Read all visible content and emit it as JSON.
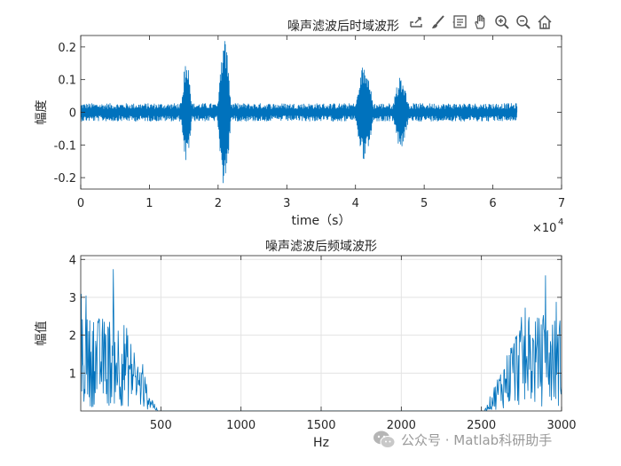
{
  "chart_data": [
    {
      "type": "line",
      "title": "噪声滤波后时域波形",
      "xlabel": "time（s）",
      "ylabel": "幅度",
      "xlim": [
        0,
        70000
      ],
      "ylim": [
        -0.235,
        0.235
      ],
      "x_tick_values": [
        0,
        10000,
        20000,
        30000,
        40000,
        50000,
        60000,
        70000
      ],
      "x_tick_labels": [
        "0",
        "1",
        "2",
        "3",
        "4",
        "5",
        "6",
        "7"
      ],
      "x_exponent_label": "×10",
      "x_exponent_power": "4",
      "y_tick_values": [
        -0.2,
        -0.1,
        0,
        0.1,
        0.2
      ],
      "y_tick_labels": [
        "-0.2",
        "-0.1",
        "0",
        "0.1",
        "0.2"
      ],
      "grid": false,
      "series": [
        {
          "color": "#0072BD",
          "x_range": [
            0,
            63500
          ],
          "noise_envelope": 0.028,
          "bursts": [
            {
              "x_start": 14500,
              "x_end": 16300,
              "peak": 0.16
            },
            {
              "x_start": 19800,
              "x_end": 22000,
              "peak": 0.235
            },
            {
              "x_start": 39800,
              "x_end": 42800,
              "peak": 0.15
            },
            {
              "x_start": 45200,
              "x_end": 48000,
              "peak": 0.11
            }
          ]
        }
      ]
    },
    {
      "type": "line",
      "title": "噪声滤波后频域波形",
      "xlabel": "Hz",
      "ylabel": "幅值",
      "xlim": [
        0,
        3000
      ],
      "ylim": [
        0,
        4.1
      ],
      "x_tick_values": [
        500,
        1000,
        1500,
        2000,
        2500,
        3000
      ],
      "x_tick_labels": [
        "500",
        "1000",
        "1500",
        "2000",
        "2500",
        "3000"
      ],
      "y_tick_values": [
        1,
        2,
        3,
        4
      ],
      "y_tick_labels": [
        "1",
        "2",
        "3",
        "4"
      ],
      "grid": true,
      "series": [
        {
          "color": "#0072BD",
          "low_band": {
            "x_start": 0,
            "x_end": 480,
            "mean": 1.5,
            "peak": 4.1
          },
          "high_band": {
            "x_start": 2520,
            "x_end": 3000,
            "mean": 1.5,
            "peak": 4.1
          },
          "mid_level": 0.0
        }
      ]
    }
  ],
  "toolbar": {
    "icons": [
      "export-icon",
      "brush-icon",
      "data-tips-icon",
      "pan-icon",
      "zoom-in-icon",
      "zoom-out-icon",
      "home-icon"
    ]
  },
  "watermark": {
    "text": "公众号 · Matlab科研助手"
  }
}
